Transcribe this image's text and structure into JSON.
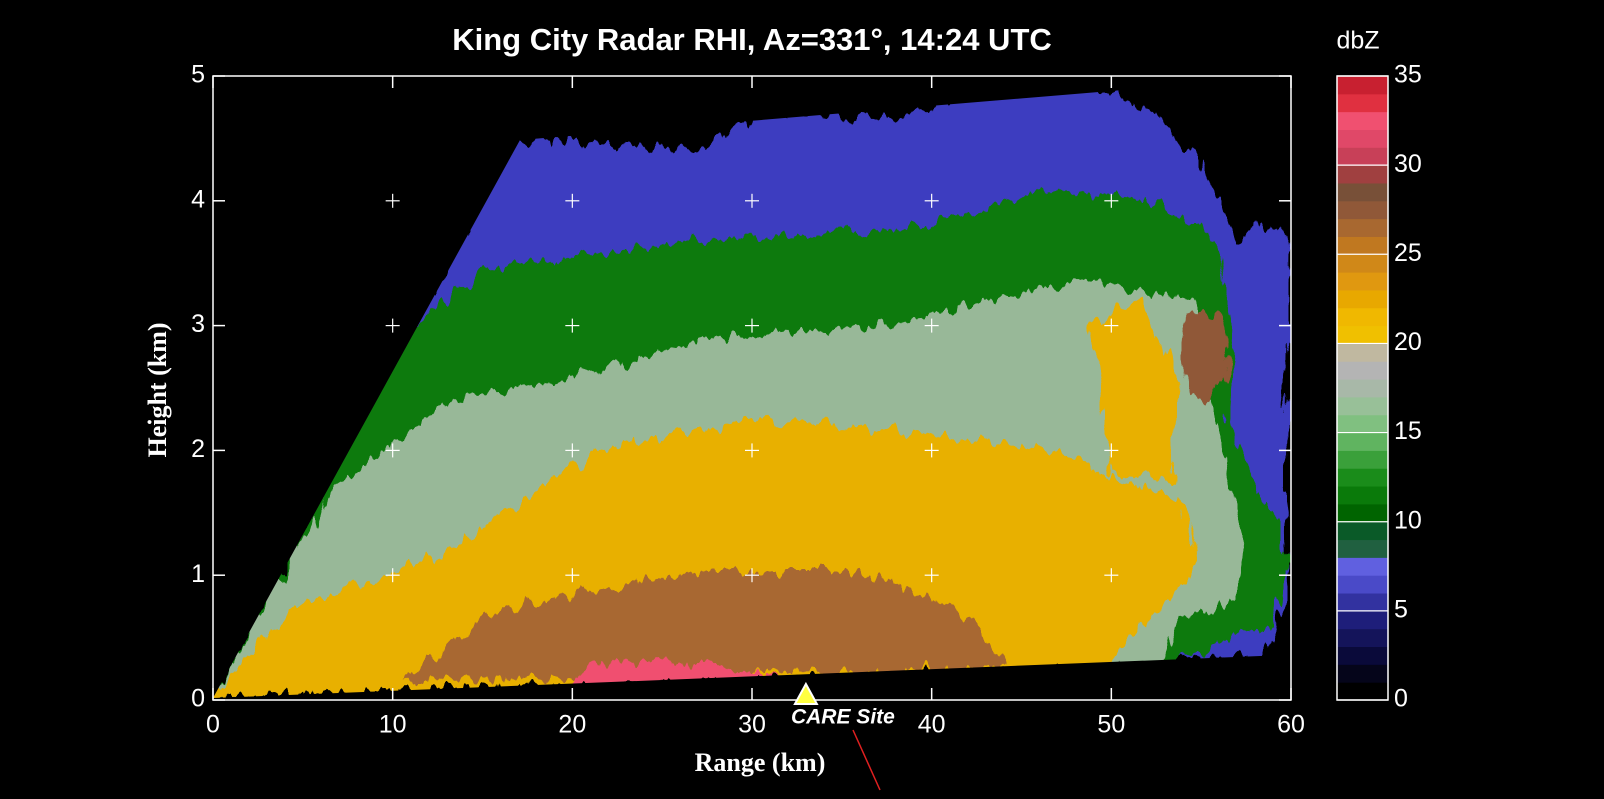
{
  "chart_data": {
    "type": "rhi",
    "title": "King City Radar RHI, Az=331°, 14:24 UTC",
    "xlabel": "Range (km)",
    "ylabel": "Height (km)",
    "xlim": [
      0,
      60
    ],
    "xticks": [
      0,
      10,
      20,
      30,
      40,
      50,
      60
    ],
    "ylim": [
      0,
      5
    ],
    "yticks": [
      0,
      1,
      2,
      3,
      4,
      5
    ],
    "grid": "crosses",
    "annotations": [
      {
        "text": "CARE Site",
        "x": 33
      }
    ],
    "colorbar": {
      "label": "dbZ",
      "lim": [
        0,
        35
      ],
      "ticks": [
        0,
        5,
        10,
        15,
        20,
        25,
        30,
        35
      ],
      "colors": [
        "#000000",
        "#05051a",
        "#0a0a3a",
        "#14145a",
        "#1e1e7a",
        "#3232a0",
        "#4a4ac8",
        "#6060e0",
        "#206040",
        "#0a5a28",
        "#006400",
        "#0a7a0a",
        "#1a8c1a",
        "#3aa03a",
        "#60b460",
        "#80c080",
        "#98c098",
        "#a8b8a8",
        "#b4b4b4",
        "#c0b8a0",
        "#f0c000",
        "#f0b800",
        "#e8a800",
        "#e09810",
        "#d08818",
        "#c07820",
        "#a86830",
        "#905838",
        "#785038",
        "#a04040",
        "#c84058",
        "#e04868",
        "#f05070",
        "#e03040",
        "#c82030"
      ]
    }
  }
}
